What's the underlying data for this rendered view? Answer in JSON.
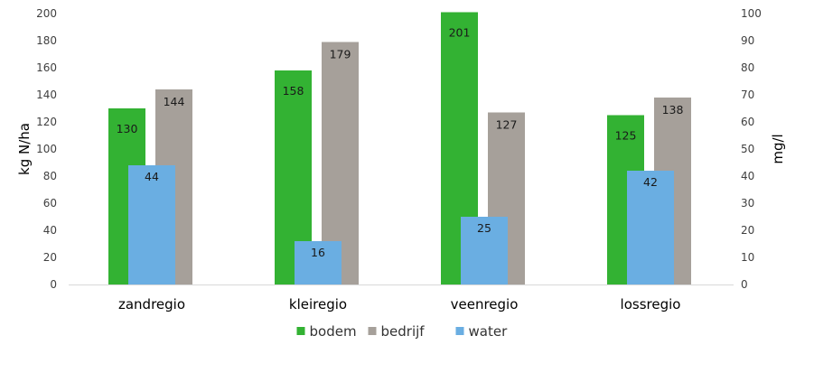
{
  "chart_data": {
    "type": "bar",
    "title": "",
    "categories": [
      "zandregio",
      "kleiregio",
      "veenregio",
      "lossregio"
    ],
    "series": [
      {
        "name": "bodem",
        "axis": "left",
        "values": [
          130,
          158,
          201,
          125
        ],
        "color": "#33b233"
      },
      {
        "name": "bedrijf",
        "axis": "left",
        "values": [
          144,
          179,
          127,
          138
        ],
        "color": "#a6a09a"
      },
      {
        "name": "water",
        "axis": "right",
        "values": [
          44,
          16,
          25,
          42
        ],
        "color": "#6aaee2"
      }
    ],
    "y_left": {
      "label": "kg N/ha",
      "min": 0,
      "max": 200,
      "step": 20
    },
    "y_right": {
      "label": "mg/l",
      "min": 0,
      "max": 100,
      "step": 10
    },
    "grid": false,
    "legend": "bottom-center"
  }
}
